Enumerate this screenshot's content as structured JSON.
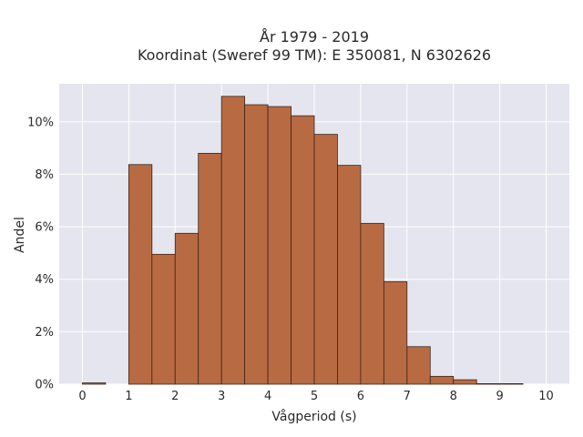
{
  "chart_data": {
    "type": "bar",
    "title_line1": "År 1979 - 2019",
    "title_line2": "Koordinat (Sweref 99 TM): E 350081, N 6302626",
    "xlabel": "Vågperiod (s)",
    "ylabel": "Andel",
    "bin_width": 0.5,
    "bin_starts": [
      0,
      0.5,
      1,
      1.5,
      2,
      2.5,
      3,
      3.5,
      4,
      4.5,
      5,
      5.5,
      6,
      6.5,
      7,
      7.5,
      8,
      8.5,
      9,
      9.5
    ],
    "values": [
      0.0005,
      0,
      0.0837,
      0.0495,
      0.0575,
      0.088,
      0.1097,
      0.1065,
      0.1058,
      0.1023,
      0.0952,
      0.0834,
      0.0613,
      0.0391,
      0.0143,
      0.003,
      0.0017,
      0.0002,
      0.0002,
      0
    ],
    "xlim": [
      -0.5,
      10.5
    ],
    "ylim": [
      0,
      0.1145
    ],
    "x_ticks": [
      0,
      1,
      2,
      3,
      4,
      5,
      6,
      7,
      8,
      9,
      10
    ],
    "x_tick_labels": [
      "0",
      "1",
      "2",
      "3",
      "4",
      "5",
      "6",
      "7",
      "8",
      "9",
      "10"
    ],
    "y_ticks": [
      0,
      0.02,
      0.04,
      0.06,
      0.08,
      0.1
    ],
    "y_tick_labels": [
      "0%",
      "2%",
      "4%",
      "6%",
      "8%",
      "10%"
    ],
    "grid": true,
    "bar_color": "#b86b43",
    "bar_edge_color": "#3a2418",
    "plot_background": "#e5e5ef"
  }
}
